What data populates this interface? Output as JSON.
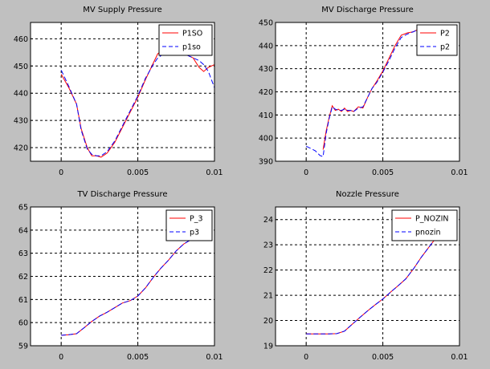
{
  "colors": {
    "background": "#c0c0c0",
    "plot_bg": "#ffffff",
    "red": "#ff0000",
    "blue": "#0000ff",
    "grid": "#000000"
  },
  "chart_data": [
    {
      "type": "line",
      "title": "MV Supply Pressure",
      "xlim": [
        -0.002,
        0.01
      ],
      "ylim": [
        415,
        466
      ],
      "xticks": [
        0,
        0.005,
        0.01
      ],
      "xtick_labels": [
        "0",
        "0.005",
        "0.01"
      ],
      "yticks": [
        420,
        430,
        440,
        450,
        460
      ],
      "ytick_labels": [
        "420",
        "430",
        "440",
        "450",
        "460"
      ],
      "legend": [
        "P1SO",
        "p1so"
      ],
      "series": [
        {
          "name": "P1SO",
          "color": "#ff0000",
          "dash": false,
          "x": [
            0,
            0.0005,
            0.001,
            0.0013,
            0.0017,
            0.002,
            0.0023,
            0.0026,
            0.003,
            0.0035,
            0.004,
            0.0045,
            0.005,
            0.0055,
            0.006,
            0.0063,
            0.0067,
            0.007,
            0.0074,
            0.0078,
            0.0082,
            0.0086,
            0.009,
            0.0093,
            0.0096,
            0.01
          ],
          "y": [
            447,
            442,
            436,
            427,
            420,
            417,
            417,
            416.5,
            418,
            422,
            427.5,
            433,
            438.5,
            445,
            451,
            454.5,
            456,
            455,
            454,
            454.5,
            454,
            453,
            449.5,
            448,
            449.5,
            450.5
          ]
        },
        {
          "name": "p1so",
          "color": "#0000ff",
          "dash": true,
          "x": [
            0,
            0.0005,
            0.001,
            0.0013,
            0.0017,
            0.002,
            0.0023,
            0.0026,
            0.003,
            0.0035,
            0.004,
            0.0045,
            0.005,
            0.0055,
            0.006,
            0.0063,
            0.0067,
            0.007,
            0.0074,
            0.0078,
            0.0082,
            0.0086,
            0.009,
            0.0093,
            0.0096,
            0.01
          ],
          "y": [
            448.5,
            442.5,
            436,
            426.5,
            419.5,
            417.5,
            417,
            417,
            418.5,
            422.5,
            428,
            433.5,
            439,
            445.5,
            450.5,
            453,
            454.5,
            455,
            454.5,
            454.5,
            454,
            453,
            452,
            450.5,
            448,
            442
          ]
        }
      ]
    },
    {
      "type": "line",
      "title": "MV Discharge Pressure",
      "xlim": [
        -0.002,
        0.01
      ],
      "ylim": [
        390,
        450
      ],
      "xticks": [
        0,
        0.005,
        0.01
      ],
      "xtick_labels": [
        "0",
        "0.005",
        "0.01"
      ],
      "yticks": [
        390,
        400,
        410,
        420,
        430,
        440,
        450
      ],
      "ytick_labels": [
        "390",
        "400",
        "410",
        "420",
        "430",
        "440",
        "450"
      ],
      "legend": [
        "P2",
        "p2"
      ],
      "series": [
        {
          "name": "P2",
          "color": "#ff0000",
          "dash": false,
          "x": [
            0.0011,
            0.0013,
            0.0015,
            0.0017,
            0.0019,
            0.0021,
            0.0023,
            0.0025,
            0.0027,
            0.0029,
            0.0031,
            0.0034,
            0.0037,
            0.004,
            0.0043,
            0.0046,
            0.005,
            0.0054,
            0.0058,
            0.0062,
            0.0066,
            0.007,
            0.0073
          ],
          "y": [
            395,
            403,
            409,
            414,
            412,
            412.5,
            411.5,
            413,
            411.5,
            412,
            411.5,
            413.5,
            413,
            417.5,
            421.5,
            424.5,
            429,
            434.5,
            440,
            444.5,
            445.5,
            446,
            447
          ]
        },
        {
          "name": "p2",
          "color": "#0000ff",
          "dash": true,
          "x": [
            0,
            0.0003,
            0.0006,
            0.0009,
            0.0011,
            0.0013,
            0.0015,
            0.0017,
            0.0019,
            0.0021,
            0.0023,
            0.0025,
            0.0027,
            0.0029,
            0.0031,
            0.0034,
            0.0037,
            0.004,
            0.0043,
            0.0046,
            0.005,
            0.0054,
            0.0058,
            0.0062,
            0.0066,
            0.007,
            0.0073
          ],
          "y": [
            396.5,
            395.5,
            394.5,
            392.5,
            392,
            402,
            408.5,
            413.5,
            412.5,
            412,
            412,
            412.5,
            412,
            412,
            411.5,
            413,
            413.5,
            417.5,
            421.5,
            424,
            428.5,
            433.5,
            439,
            443.5,
            445,
            446,
            447
          ]
        }
      ]
    },
    {
      "type": "line",
      "title": "TV Discharge Pressure",
      "xlim": [
        -0.002,
        0.01
      ],
      "ylim": [
        59,
        65
      ],
      "xticks": [
        0,
        0.005,
        0.01
      ],
      "xtick_labels": [
        "0",
        "0.005",
        "0.01"
      ],
      "yticks": [
        59,
        60,
        61,
        62,
        63,
        64,
        65
      ],
      "ytick_labels": [
        "59",
        "60",
        "61",
        "62",
        "63",
        "64",
        "65"
      ],
      "legend": [
        "P_3",
        "p3"
      ],
      "series": [
        {
          "name": "P_3",
          "color": "#ff0000",
          "dash": false,
          "x": [
            0,
            0.0005,
            0.001,
            0.0015,
            0.002,
            0.0025,
            0.003,
            0.0035,
            0.004,
            0.0045,
            0.005,
            0.0055,
            0.006,
            0.0065,
            0.007,
            0.0075,
            0.008,
            0.0085
          ],
          "y": [
            59.45,
            59.48,
            59.52,
            59.78,
            60.05,
            60.28,
            60.45,
            60.65,
            60.85,
            60.95,
            61.15,
            61.5,
            61.95,
            62.35,
            62.7,
            63.1,
            63.4,
            63.6
          ]
        },
        {
          "name": "p3",
          "color": "#0000ff",
          "dash": true,
          "x": [
            0,
            0.0005,
            0.001,
            0.0015,
            0.002,
            0.0025,
            0.003,
            0.0035,
            0.004,
            0.0045,
            0.005,
            0.0055,
            0.006,
            0.0065,
            0.007,
            0.0075,
            0.008,
            0.0085
          ],
          "y": [
            59.45,
            59.48,
            59.52,
            59.78,
            60.05,
            60.28,
            60.45,
            60.65,
            60.85,
            60.95,
            61.15,
            61.5,
            61.95,
            62.35,
            62.7,
            63.1,
            63.4,
            63.6
          ]
        }
      ]
    },
    {
      "type": "line",
      "title": "Nozzle Pressure",
      "xlim": [
        -0.002,
        0.01
      ],
      "ylim": [
        19,
        24.5
      ],
      "xticks": [
        0,
        0.005,
        0.01
      ],
      "xtick_labels": [
        "0",
        "0.005",
        "0.01"
      ],
      "yticks": [
        19,
        20,
        21,
        22,
        23,
        24
      ],
      "ytick_labels": [
        "19",
        "20",
        "21",
        "22",
        "23",
        "24"
      ],
      "legend": [
        "P_NOZIN",
        "pnozin"
      ],
      "series": [
        {
          "name": "P_NOZIN",
          "color": "#ff0000",
          "dash": false,
          "x": [
            0,
            0.0005,
            0.001,
            0.0015,
            0.002,
            0.0025,
            0.003,
            0.0035,
            0.004,
            0.0045,
            0.005,
            0.0055,
            0.006,
            0.0065,
            0.007,
            0.0075,
            0.008,
            0.0085
          ],
          "y": [
            19.47,
            19.47,
            19.47,
            19.47,
            19.48,
            19.58,
            19.85,
            20.12,
            20.38,
            20.62,
            20.85,
            21.12,
            21.38,
            21.65,
            22.05,
            22.5,
            22.9,
            23.3
          ]
        },
        {
          "name": "pnozin",
          "color": "#0000ff",
          "dash": true,
          "x": [
            0,
            0.0005,
            0.001,
            0.0015,
            0.002,
            0.0025,
            0.003,
            0.0035,
            0.004,
            0.0045,
            0.005,
            0.0055,
            0.006,
            0.0065,
            0.007,
            0.0075,
            0.008,
            0.0085
          ],
          "y": [
            19.47,
            19.47,
            19.47,
            19.47,
            19.48,
            19.58,
            19.85,
            20.12,
            20.38,
            20.62,
            20.85,
            21.12,
            21.38,
            21.65,
            22.05,
            22.5,
            22.9,
            23.3
          ]
        }
      ]
    }
  ]
}
